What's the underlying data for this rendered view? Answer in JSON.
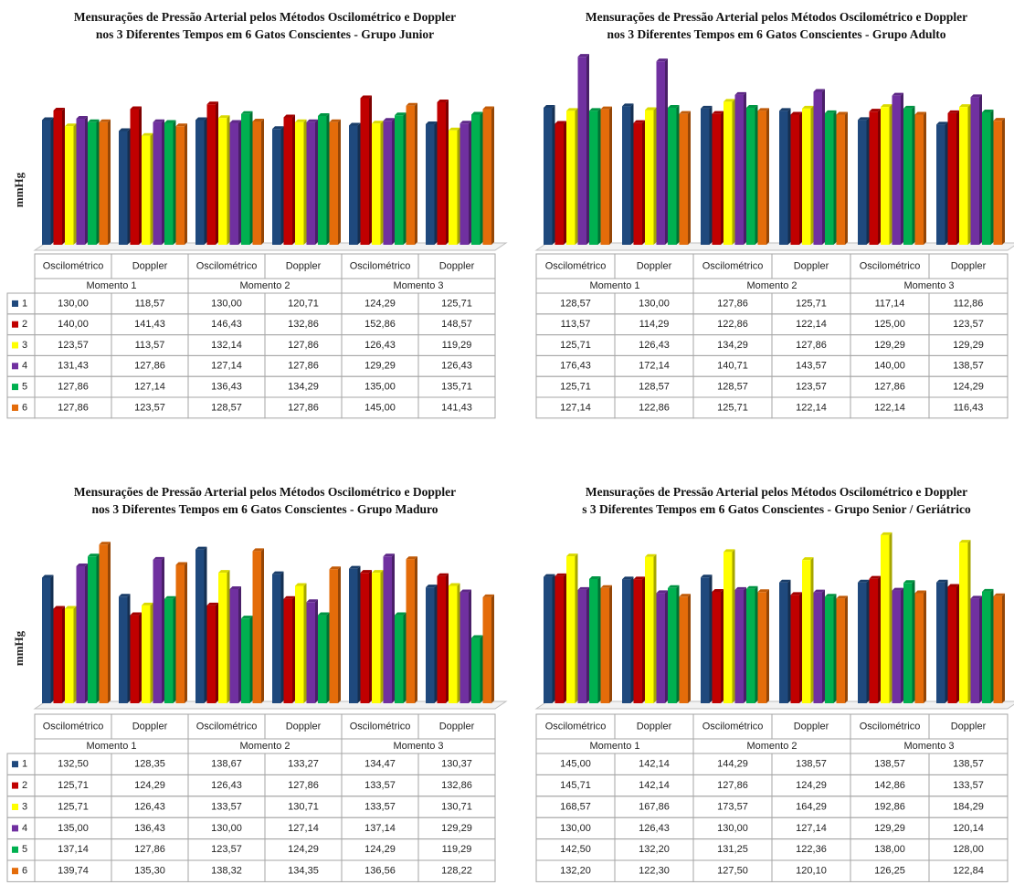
{
  "chart_data": [
    {
      "type": "bar",
      "title": [
        "Mensurações de Pressão Arterial pelos Métodos Oscilométrico e Doppler",
        "nos 3 Diferentes Tempos em 6 Gatos Conscientes - Grupo Junior"
      ],
      "ylabel": "mmHg",
      "categories": [
        "Oscilométrico",
        "Doppler",
        "Oscilométrico",
        "Doppler",
        "Oscilométrico",
        "Doppler"
      ],
      "groups": [
        "Momento 1",
        "Momento 2",
        "Momento 3"
      ],
      "ylim": [
        0,
        200
      ],
      "series": [
        {
          "name": "1",
          "color": "#1f497d",
          "values": [
            130.0,
            118.57,
            130.0,
            120.71,
            124.29,
            125.71
          ],
          "value_labels": [
            "130,00",
            "118,57",
            "130,00",
            "120,71",
            "124,29",
            "125,71"
          ]
        },
        {
          "name": "2",
          "color": "#c00000",
          "values": [
            140.0,
            141.43,
            146.43,
            132.86,
            152.86,
            148.57
          ],
          "value_labels": [
            "140,00",
            "141,43",
            "146,43",
            "132,86",
            "152,86",
            "148,57"
          ]
        },
        {
          "name": "3",
          "color": "#ffff00",
          "values": [
            123.57,
            113.57,
            132.14,
            127.86,
            126.43,
            119.29
          ],
          "value_labels": [
            "123,57",
            "113,57",
            "132,14",
            "127,86",
            "126,43",
            "119,29"
          ]
        },
        {
          "name": "4",
          "color": "#7030a0",
          "values": [
            131.43,
            127.86,
            127.14,
            127.86,
            129.29,
            126.43
          ],
          "value_labels": [
            "131,43",
            "127,86",
            "127,14",
            "127,86",
            "129,29",
            "126,43"
          ]
        },
        {
          "name": "5",
          "color": "#00b050",
          "values": [
            127.86,
            127.14,
            136.43,
            134.29,
            135.0,
            135.71
          ],
          "value_labels": [
            "127,86",
            "127,14",
            "136,43",
            "134,29",
            "135,00",
            "135,71"
          ]
        },
        {
          "name": "6",
          "color": "#e46c0a",
          "values": [
            127.86,
            123.57,
            128.57,
            127.86,
            145.0,
            141.43
          ],
          "value_labels": [
            "127,86",
            "123,57",
            "128,57",
            "127,86",
            "145,00",
            "141,43"
          ]
        }
      ]
    },
    {
      "type": "bar",
      "title": [
        "Mensurações de Pressão Arterial pelos Métodos Oscilométrico e Doppler",
        "nos 3 Diferentes Tempos em 6 Gatos Conscientes - Grupo Adulto"
      ],
      "categories": [
        "Oscilométrico",
        "Doppler",
        "Oscilométrico",
        "Doppler",
        "Oscilométrico",
        "Doppler"
      ],
      "groups": [
        "Momento 1",
        "Momento 2",
        "Momento 3"
      ],
      "ylim": [
        0,
        180
      ],
      "series": [
        {
          "color": "#1f497d",
          "values": [
            128.57,
            130.0,
            127.86,
            125.71,
            117.14,
            112.86
          ],
          "value_labels": [
            "128,57",
            "130,00",
            "127,86",
            "125,71",
            "117,14",
            "112,86"
          ]
        },
        {
          "color": "#c00000",
          "values": [
            113.57,
            114.29,
            122.86,
            122.14,
            125.0,
            123.57
          ],
          "value_labels": [
            "113,57",
            "114,29",
            "122,86",
            "122,14",
            "125,00",
            "123,57"
          ]
        },
        {
          "color": "#ffff00",
          "values": [
            125.71,
            126.43,
            134.29,
            127.86,
            129.29,
            129.29
          ],
          "value_labels": [
            "125,71",
            "126,43",
            "134,29",
            "127,86",
            "129,29",
            "129,29"
          ]
        },
        {
          "color": "#7030a0",
          "values": [
            176.43,
            172.14,
            140.71,
            143.57,
            140.0,
            138.57
          ],
          "value_labels": [
            "176,43",
            "172,14",
            "140,71",
            "143,57",
            "140,00",
            "138,57"
          ]
        },
        {
          "color": "#00b050",
          "values": [
            125.71,
            128.57,
            128.57,
            123.57,
            127.86,
            124.29
          ],
          "value_labels": [
            "125,71",
            "128,57",
            "128,57",
            "123,57",
            "127,86",
            "124,29"
          ]
        },
        {
          "color": "#e46c0a",
          "values": [
            127.14,
            122.86,
            125.71,
            122.14,
            122.14,
            116.43
          ],
          "value_labels": [
            "127,14",
            "122,86",
            "125,71",
            "122,14",
            "122,14",
            "116,43"
          ]
        }
      ]
    },
    {
      "type": "bar",
      "title": [
        "Mensurações de Pressão Arterial pelos Métodos Oscilométrico e Doppler",
        "nos 3 Diferentes Tempos em 6 Gatos Conscientes - Grupo Maduro"
      ],
      "ylabel": "mmHg",
      "categories": [
        "Oscilométrico",
        "Doppler",
        "Oscilométrico",
        "Doppler",
        "Oscilométrico",
        "Doppler"
      ],
      "groups": [
        "Momento 1",
        "Momento 2",
        "Momento 3"
      ],
      "ylim": [
        105,
        147
      ],
      "series": [
        {
          "name": "1",
          "color": "#1f497d",
          "values": [
            132.5,
            128.35,
            138.67,
            133.27,
            134.47,
            130.37
          ],
          "value_labels": [
            "132,50",
            "128,35",
            "138,67",
            "133,27",
            "134,47",
            "130,37"
          ]
        },
        {
          "name": "2",
          "color": "#c00000",
          "values": [
            125.71,
            124.29,
            126.43,
            127.86,
            133.57,
            132.86
          ],
          "value_labels": [
            "125,71",
            "124,29",
            "126,43",
            "127,86",
            "133,57",
            "132,86"
          ]
        },
        {
          "name": "3",
          "color": "#ffff00",
          "values": [
            125.71,
            126.43,
            133.57,
            130.71,
            133.57,
            130.71
          ],
          "value_labels": [
            "125,71",
            "126,43",
            "133,57",
            "130,71",
            "133,57",
            "130,71"
          ]
        },
        {
          "name": "4",
          "color": "#7030a0",
          "values": [
            135.0,
            136.43,
            130.0,
            127.14,
            137.14,
            129.29
          ],
          "value_labels": [
            "135,00",
            "136,43",
            "130,00",
            "127,14",
            "137,14",
            "129,29"
          ]
        },
        {
          "name": "5",
          "color": "#00b050",
          "values": [
            137.14,
            127.86,
            123.57,
            124.29,
            124.29,
            119.29
          ],
          "value_labels": [
            "137,14",
            "127,86",
            "123,57",
            "124,29",
            "124,29",
            "119,29"
          ]
        },
        {
          "name": "6",
          "color": "#e46c0a",
          "values": [
            139.74,
            135.3,
            138.32,
            134.35,
            136.56,
            128.22
          ],
          "value_labels": [
            "139,74",
            "135,30",
            "138,32",
            "134,35",
            "136,56",
            "128,22"
          ]
        }
      ]
    },
    {
      "type": "bar",
      "title": [
        "Mensurações de Pressão Arterial pelos Métodos Oscilométrico e Doppler",
        "s 3 Diferentes Tempos em 6 Gatos Conscientes - Grupo Senior / Geriátrico"
      ],
      "categories": [
        "Oscilométrico",
        "Doppler",
        "Oscilométrico",
        "Doppler",
        "Oscilométrico",
        "Doppler"
      ],
      "groups": [
        "Momento 1",
        "Momento 2",
        "Momento 3"
      ],
      "ylim": [
        0,
        220
      ],
      "series": [
        {
          "color": "#1f497d",
          "values": [
            145.0,
            142.14,
            144.29,
            138.57,
            138.57,
            138.57
          ],
          "value_labels": [
            "145,00",
            "142,14",
            "144,29",
            "138,57",
            "138,57",
            "138,57"
          ]
        },
        {
          "color": "#c00000",
          "values": [
            145.71,
            142.14,
            127.86,
            124.29,
            142.86,
            133.57
          ],
          "value_labels": [
            "145,71",
            "142,14",
            "127,86",
            "124,29",
            "142,86",
            "133,57"
          ]
        },
        {
          "color": "#ffff00",
          "values": [
            168.57,
            167.86,
            173.57,
            164.29,
            192.86,
            184.29
          ],
          "value_labels": [
            "168,57",
            "167,86",
            "173,57",
            "164,29",
            "192,86",
            "184,29"
          ]
        },
        {
          "color": "#7030a0",
          "values": [
            130.0,
            126.43,
            130.0,
            127.14,
            129.29,
            120.14
          ],
          "value_labels": [
            "130,00",
            "126,43",
            "130,00",
            "127,14",
            "129,29",
            "120,14"
          ]
        },
        {
          "color": "#00b050",
          "values": [
            142.5,
            132.2,
            131.25,
            122.36,
            138.0,
            128.0
          ],
          "value_labels": [
            "142,50",
            "132,20",
            "131,25",
            "122,36",
            "138,00",
            "128,00"
          ]
        },
        {
          "color": "#e46c0a",
          "values": [
            132.2,
            122.3,
            127.5,
            120.1,
            126.25,
            122.84
          ],
          "value_labels": [
            "132,20",
            "122,30",
            "127,50",
            "120,10",
            "126,25",
            "122,84"
          ]
        }
      ]
    }
  ]
}
